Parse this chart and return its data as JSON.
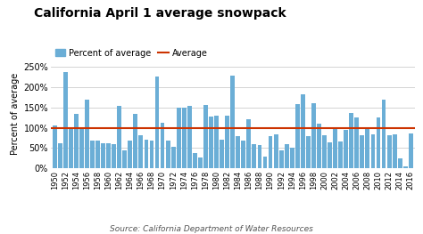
{
  "title": "California April 1 average snowpack",
  "ylabel": "Percent of average",
  "xlabel_source": "Source: California Department of Water Resources",
  "legend_bar": "Percent of average",
  "legend_line": "Average",
  "average_line": 100,
  "bar_color": "#6baed6",
  "line_color": "#cc3300",
  "background_color": "#ffffff",
  "grid_color": "#cccccc",
  "ylim": [
    0,
    270
  ],
  "yticks": [
    0,
    50,
    100,
    150,
    200,
    250
  ],
  "ytick_labels": [
    "0%",
    "50%",
    "100%",
    "150%",
    "200%",
    "250%"
  ],
  "years": [
    1950,
    1951,
    1952,
    1953,
    1954,
    1955,
    1956,
    1957,
    1958,
    1959,
    1960,
    1961,
    1962,
    1963,
    1964,
    1965,
    1966,
    1967,
    1968,
    1969,
    1970,
    1971,
    1972,
    1973,
    1974,
    1975,
    1976,
    1977,
    1978,
    1979,
    1980,
    1981,
    1982,
    1983,
    1984,
    1985,
    1986,
    1987,
    1988,
    1989,
    1990,
    1991,
    1992,
    1993,
    1994,
    1995,
    1996,
    1997,
    1998,
    1999,
    2000,
    2001,
    2002,
    2003,
    2004,
    2005,
    2006,
    2007,
    2008,
    2009,
    2010,
    2011,
    2012,
    2013,
    2014,
    2015,
    2016
  ],
  "values": [
    105,
    62,
    237,
    99,
    135,
    100,
    170,
    68,
    68,
    61,
    62,
    60,
    153,
    45,
    68,
    135,
    82,
    70,
    68,
    225,
    112,
    68,
    53,
    150,
    150,
    153,
    37,
    26,
    155,
    128,
    130,
    70,
    130,
    228,
    79,
    69,
    121,
    60,
    57,
    30,
    79,
    83,
    45,
    60,
    50,
    159,
    182,
    80,
    160,
    109,
    82,
    65,
    100,
    66,
    95,
    137,
    125,
    82,
    101,
    83,
    125,
    170,
    82,
    84,
    25,
    5,
    87
  ],
  "title_fontsize": 10,
  "legend_fontsize": 7,
  "ytick_fontsize": 7,
  "xtick_fontsize": 6,
  "ylabel_fontsize": 7,
  "source_fontsize": 6.5
}
